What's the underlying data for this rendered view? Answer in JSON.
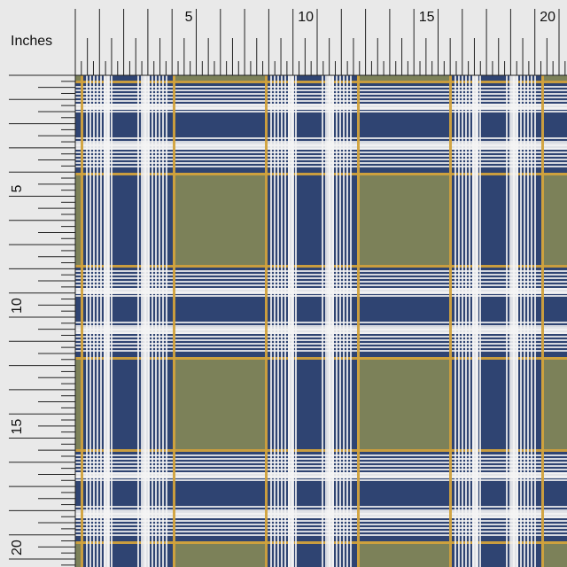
{
  "ruler": {
    "unit_label": "Inches",
    "top_labels": [
      5,
      10,
      15,
      20
    ],
    "left_labels": [
      5,
      10,
      15,
      20
    ]
  }
}
